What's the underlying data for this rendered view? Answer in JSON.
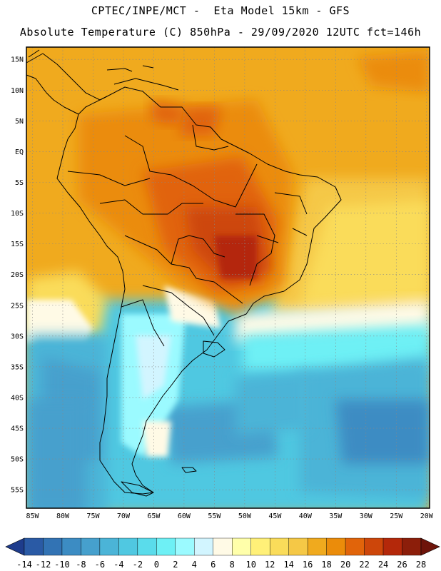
{
  "header": {
    "line1": "CPTEC/INPE/MCT -  Eta Model 15km - GFS",
    "line2": "Absolute Temperature (C) 850hPa - 29/09/2020 12UTC fct=146h"
  },
  "map": {
    "lat_labels": [
      "15N",
      "10N",
      "5N",
      "EQ",
      "5S",
      "10S",
      "15S",
      "20S",
      "25S",
      "30S",
      "35S",
      "40S",
      "45S",
      "50S",
      "55S"
    ],
    "lon_labels": [
      "85W",
      "80W",
      "75W",
      "70W",
      "65W",
      "60W",
      "55W",
      "50W",
      "45W",
      "40W",
      "35W",
      "30W",
      "25W",
      "20W"
    ],
    "lon_range": [
      -86,
      -19.5
    ],
    "lat_range": [
      17,
      -58
    ]
  },
  "colorbar": {
    "levels": [
      "-14",
      "-12",
      "-10",
      "-8",
      "-6",
      "-4",
      "-2",
      "0",
      "2",
      "4",
      "6",
      "8",
      "10",
      "12",
      "14",
      "16",
      "18",
      "20",
      "22",
      "24",
      "26",
      "28"
    ],
    "colors": [
      "#1e3c8c",
      "#2a5aa5",
      "#3273b4",
      "#3c8cc3",
      "#46a0cd",
      "#4bb4d7",
      "#50c8e1",
      "#5adceb",
      "#6ef0f5",
      "#9bfaff",
      "#d2f5ff",
      "#fffae6",
      "#ffffaa",
      "#fff078",
      "#fadc5a",
      "#f5c846",
      "#f0aa1e",
      "#eb8c0a",
      "#e1640a",
      "#cd460a",
      "#b4280a",
      "#8c1e0a",
      "#6e140a"
    ]
  }
}
